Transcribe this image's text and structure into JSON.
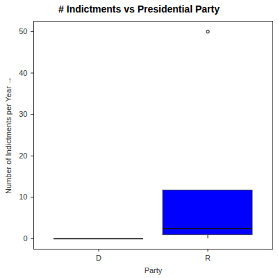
{
  "chart_data": {
    "type": "box",
    "title": "# Indictments vs Presidential Party",
    "x_label": "Party",
    "y_label": "Number of Indictments per Year",
    "categories": [
      "D",
      "R"
    ],
    "min": [
      0,
      0
    ],
    "q1": [
      0,
      0.9
    ],
    "median": [
      0,
      2.5
    ],
    "q3": [
      0,
      11.7
    ],
    "max": [
      0,
      11.7
    ],
    "outliers": [
      [],
      [
        50
      ]
    ],
    "color": "#0000ff",
    "ylim": [
      -2.5,
      52.5
    ],
    "yticks": [
      0,
      10,
      20,
      30,
      40,
      50
    ],
    "grid": false
  }
}
